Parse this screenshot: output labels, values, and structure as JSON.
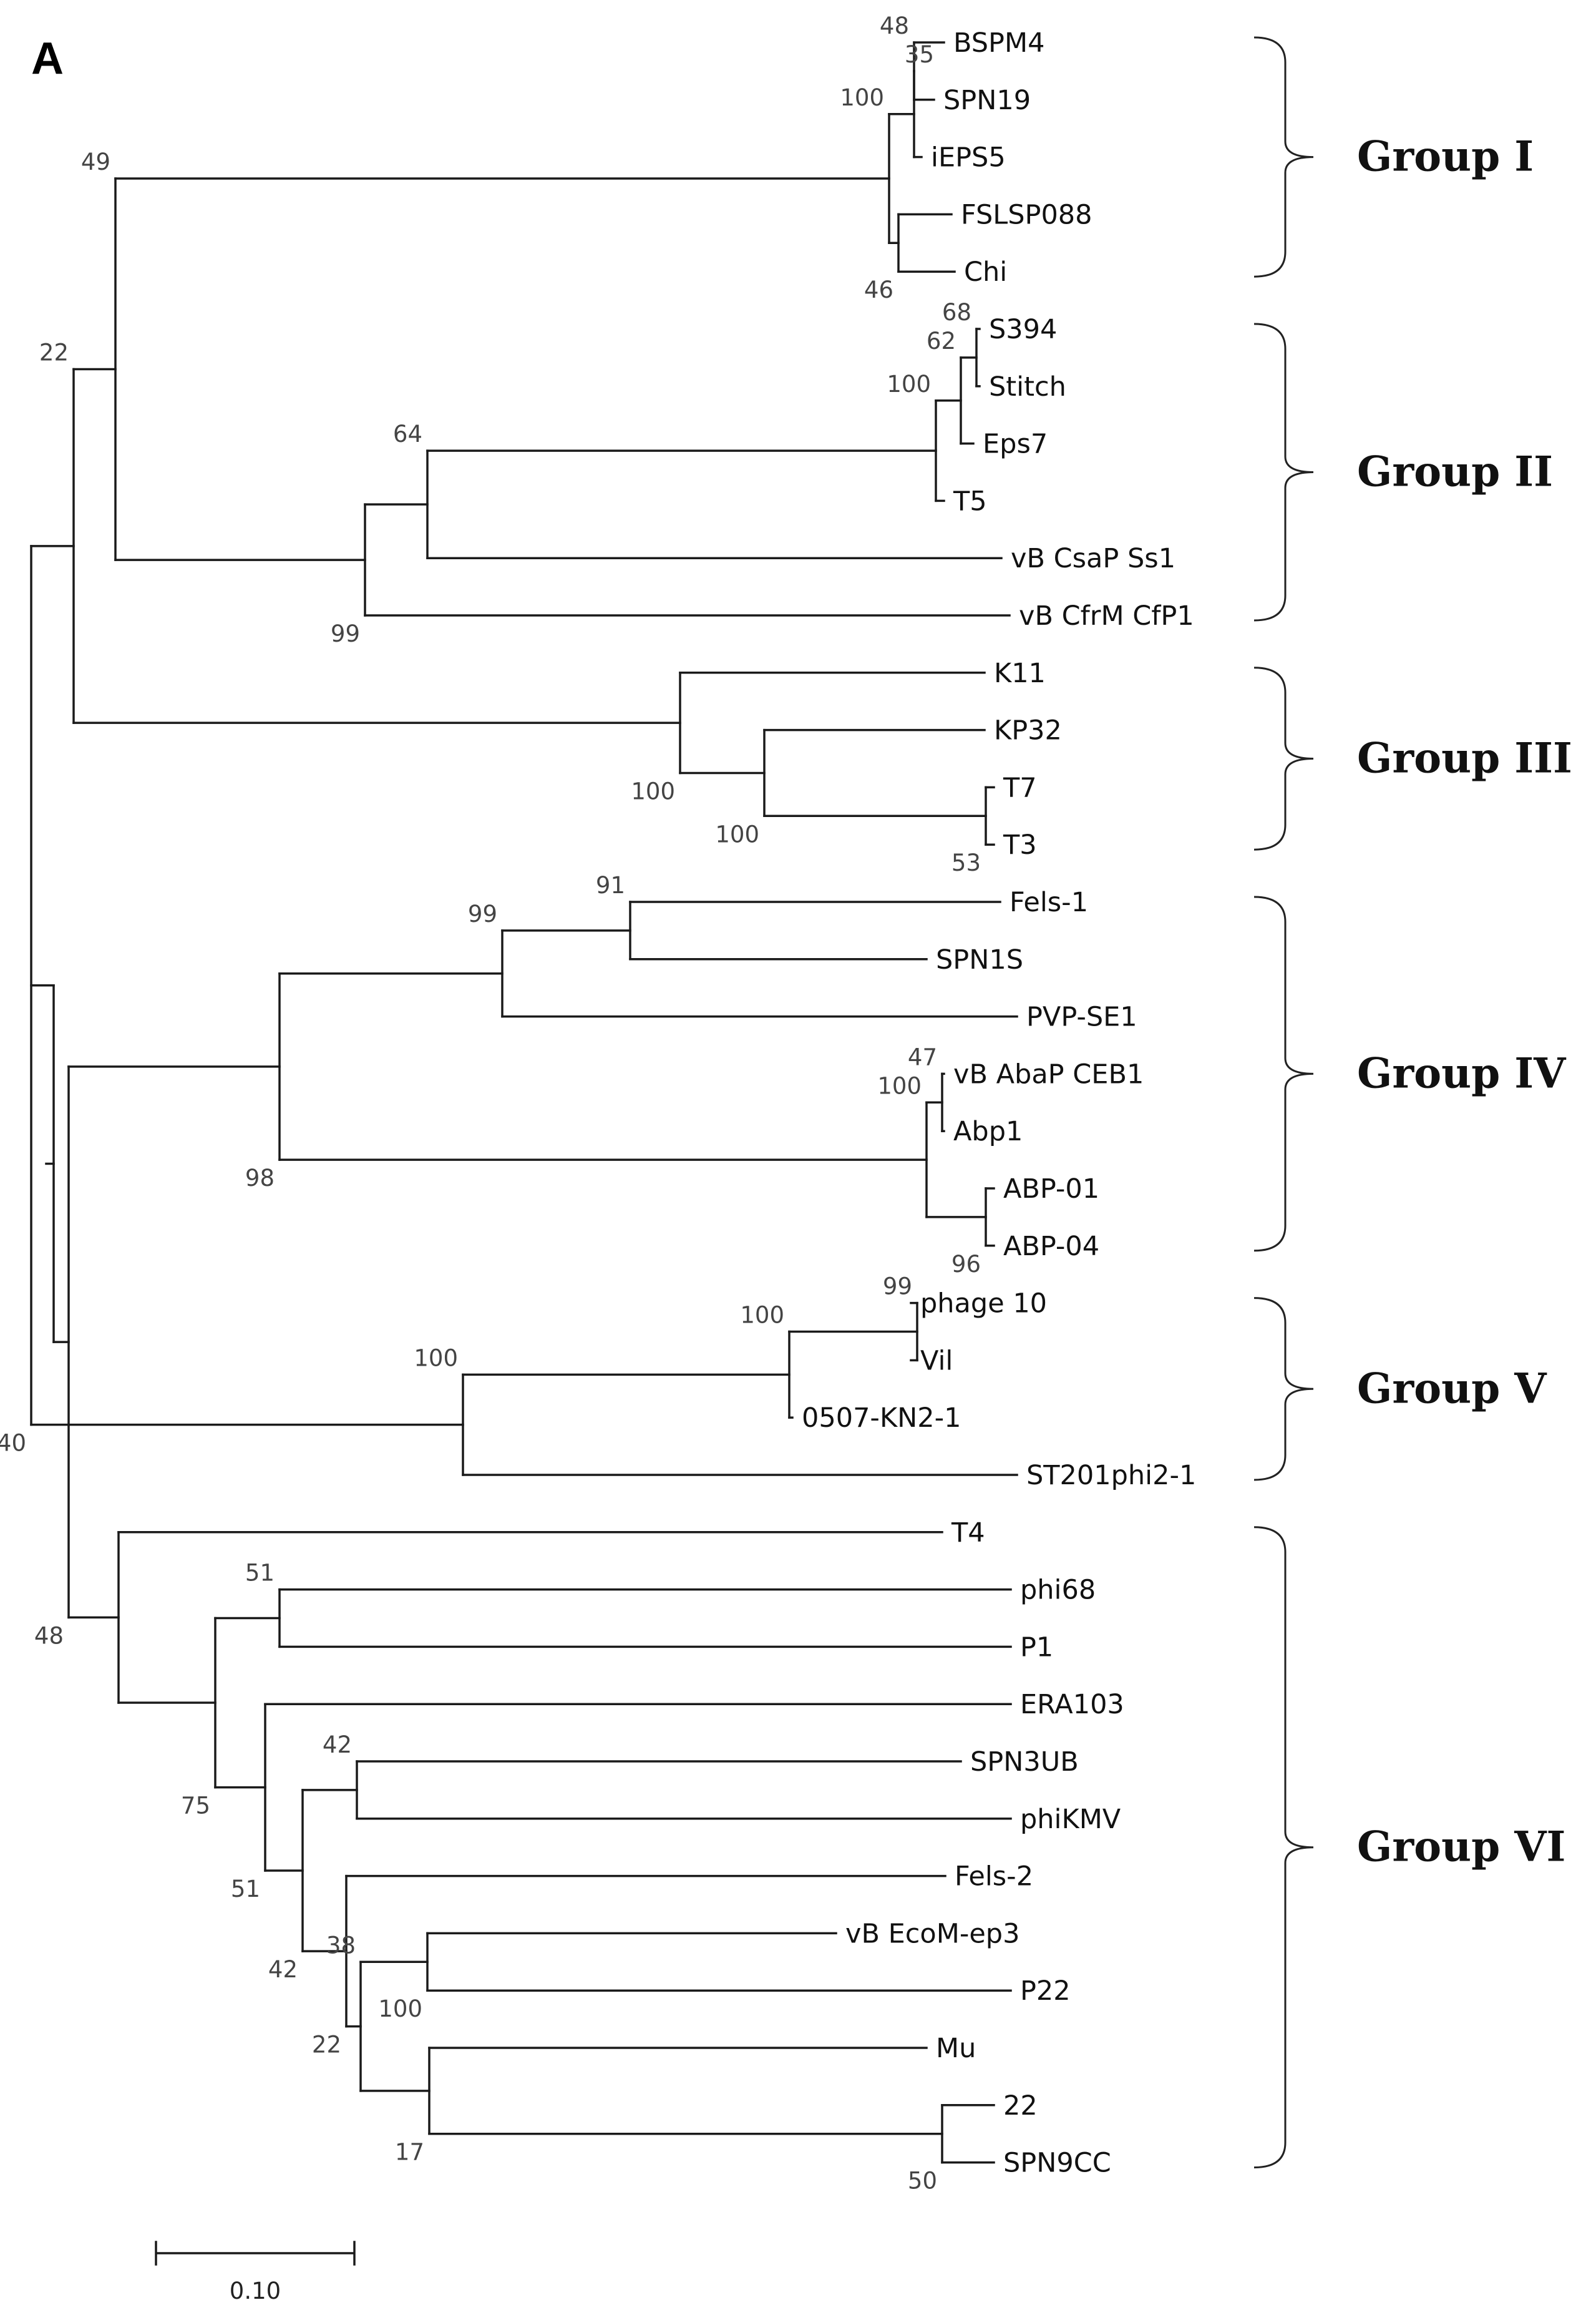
{
  "figure": {
    "panel_label": "A",
    "scale_bar_label": "0.10",
    "colors": {
      "line": "#1a1a1a",
      "text": "#111111",
      "support": "#444444"
    }
  },
  "tree": {
    "leaves": [
      "BSPM4",
      "SPN19",
      "iEPS5",
      "FSLSP088",
      "Chi",
      "S394",
      "Stitch",
      "Eps7",
      "T5",
      "vB CsaP Ss1",
      "vB CfrM CfP1",
      "K11",
      "KP32",
      "T7",
      "T3",
      "Fels-1",
      "SPN1S",
      "PVP-SE1",
      "vB AbaP CEB1",
      "Abp1",
      "ABP-01",
      "ABP-04",
      "phage 10",
      "Vil",
      "0507-KN2-1",
      "ST201phi2-1",
      "T4",
      "phi68",
      "P1",
      "ERA103",
      "SPN3UB",
      "phiKMV",
      "Fels-2",
      "vB EcoM-ep3",
      "P22",
      "Mu",
      "22",
      "SPN9CC"
    ],
    "support_values": [
      "48",
      "35",
      "100",
      "46",
      "68",
      "62",
      "100",
      "64",
      "99",
      "49",
      "100",
      "53",
      "100",
      "91",
      "99",
      "47",
      "96",
      "100",
      "98",
      "22",
      "99",
      "100",
      "100",
      "40",
      "51",
      "48",
      "75",
      "42",
      "51",
      "42",
      "22",
      "38",
      "17",
      "50",
      "100"
    ]
  },
  "groups": [
    {
      "label": "Group I"
    },
    {
      "label": "Group II"
    },
    {
      "label": "Group III"
    },
    {
      "label": "Group IV"
    },
    {
      "label": "Group V"
    },
    {
      "label": "Group VI"
    }
  ]
}
